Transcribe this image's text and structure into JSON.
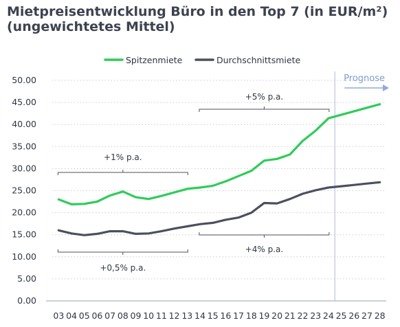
{
  "chart_data": {
    "type": "line",
    "title": "Mietpreisentwicklung Büro in den Top 7 (in EUR/m²) (ungewichtetes Mittel)",
    "categories": [
      "03",
      "04",
      "05",
      "06",
      "07",
      "08",
      "09",
      "10",
      "11",
      "12",
      "13",
      "14",
      "15",
      "16",
      "17",
      "18",
      "19",
      "20",
      "21",
      "22",
      "23",
      "24",
      "25",
      "26",
      "27",
      "28"
    ],
    "ylim": [
      0,
      50
    ],
    "yticks": [
      "0.00",
      "5.00",
      "10.00",
      "15.00",
      "20.00",
      "25.00",
      "30.00",
      "35.00",
      "40.00",
      "45.00",
      "50.00"
    ],
    "grid": "horizontal-dotted",
    "legend_position": "top",
    "series": [
      {
        "name": "Spitzenmiete",
        "color": "#2ecc5a",
        "values": [
          23.0,
          21.9,
          22.0,
          22.5,
          23.9,
          24.8,
          23.5,
          23.1,
          23.8,
          24.6,
          25.4,
          25.7,
          26.1,
          27.1,
          28.3,
          29.5,
          31.8,
          32.2,
          33.2,
          36.3,
          38.6,
          41.4,
          42.2,
          43.0,
          43.8,
          44.6
        ]
      },
      {
        "name": "Durchschnittsmiete",
        "color": "#4c4f5e",
        "values": [
          16.0,
          15.3,
          14.9,
          15.2,
          15.8,
          15.8,
          15.2,
          15.3,
          15.8,
          16.4,
          16.9,
          17.4,
          17.7,
          18.4,
          18.9,
          20.0,
          22.2,
          22.1,
          23.1,
          24.3,
          25.1,
          25.7,
          26.0,
          26.3,
          26.6,
          26.9
        ]
      }
    ],
    "forecast": {
      "label": "Prognose",
      "start_category": "24"
    },
    "annotations": [
      {
        "label": "+1% p.a.",
        "from": "03",
        "to": "13",
        "series": "Spitzenmiete",
        "side": "above"
      },
      {
        "label": "+5% p.a.",
        "from": "14",
        "to": "24",
        "series": "Spitzenmiete",
        "side": "above"
      },
      {
        "label": "+0,5% p.a.",
        "from": "03",
        "to": "13",
        "series": "Durchschnittsmiete",
        "side": "below"
      },
      {
        "label": "+4% p.a.",
        "from": "14",
        "to": "24",
        "series": "Durchschnittsmiete",
        "side": "below"
      }
    ]
  }
}
